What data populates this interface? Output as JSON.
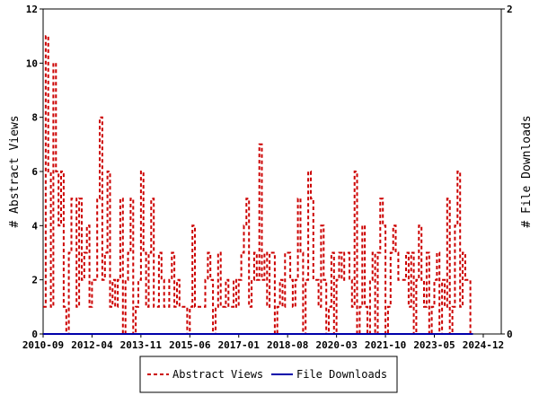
{
  "chart_data": {
    "type": "line",
    "ylabel_left": "# Abstract Views",
    "ylabel_right": "# File Downloads",
    "ylim_left": [
      0,
      12
    ],
    "ylim_right": [
      0,
      2
    ],
    "y_ticks_left": [
      0,
      2,
      4,
      6,
      8,
      10,
      12
    ],
    "y_ticks_right": [
      0,
      2
    ],
    "x_range_years": [
      2010.667,
      2025.5
    ],
    "x_ticks": [
      {
        "label": "2010-09",
        "t": 2010.667
      },
      {
        "label": "2012-04",
        "t": 2012.25
      },
      {
        "label": "2013-11",
        "t": 2013.833
      },
      {
        "label": "2015-06",
        "t": 2015.417
      },
      {
        "label": "2017-01",
        "t": 2017.0
      },
      {
        "label": "2018-08",
        "t": 2018.583
      },
      {
        "label": "2020-03",
        "t": 2020.167
      },
      {
        "label": "2021-10",
        "t": 2021.75
      },
      {
        "label": "2023-05",
        "t": 2023.333
      },
      {
        "label": "2024-12",
        "t": 2024.917
      }
    ],
    "grid": false,
    "legend_position": "bottom",
    "series": [
      {
        "name": "Abstract Views",
        "axis": "left",
        "color": "#cc0000",
        "dash": true,
        "x_start": "2010-09",
        "step": "month",
        "values": [
          1,
          11,
          6,
          1,
          10,
          6,
          4,
          6,
          1,
          0,
          3,
          5,
          5,
          1,
          5,
          2,
          3,
          4,
          1,
          2,
          2,
          5,
          8,
          2,
          3,
          6,
          1,
          2,
          1,
          2,
          5,
          0,
          2,
          3,
          5,
          0,
          1,
          2,
          6,
          3,
          1,
          3,
          5,
          1,
          1,
          3,
          2,
          1,
          1,
          2,
          3,
          1,
          2,
          1,
          1,
          1,
          0,
          1,
          4,
          1,
          1,
          1,
          1,
          2,
          3,
          2,
          0,
          1,
          3,
          1,
          1,
          2,
          1,
          1,
          2,
          1,
          2,
          3,
          4,
          5,
          1,
          2,
          3,
          2,
          7,
          2,
          3,
          1,
          3,
          3,
          0,
          1,
          2,
          1,
          3,
          3,
          2,
          1,
          2,
          5,
          3,
          0,
          2,
          6,
          5,
          2,
          2,
          1,
          4,
          2,
          0,
          1,
          3,
          0,
          2,
          3,
          2,
          3,
          3,
          2,
          1,
          6,
          0,
          1,
          4,
          1,
          0,
          2,
          3,
          0,
          3,
          5,
          4,
          0,
          1,
          3,
          4,
          3,
          2,
          2,
          2,
          3,
          1,
          3,
          0,
          2,
          4,
          2,
          1,
          3,
          0,
          1,
          2,
          3,
          0,
          2,
          1,
          5,
          0,
          1,
          4,
          6,
          1,
          3,
          2,
          2,
          0
        ],
        "visible_x_labels": []
      },
      {
        "name": "File Downloads",
        "axis": "right",
        "color": "#0000aa",
        "dash": false,
        "x_start": "2010-09",
        "step": "month",
        "values": [
          0,
          0,
          0,
          0,
          0,
          0,
          0,
          0,
          0,
          0,
          0,
          0,
          0,
          0,
          0,
          0,
          0,
          0,
          0,
          0,
          0,
          0,
          0,
          0,
          0,
          0,
          0,
          0,
          0,
          0,
          0,
          0,
          0,
          0,
          0,
          0,
          0,
          0,
          0,
          0,
          0,
          0,
          0,
          0,
          0,
          0,
          0,
          0,
          0,
          0,
          0,
          0,
          0,
          0,
          0,
          0,
          0,
          0,
          0,
          0,
          0,
          0,
          0,
          0,
          0,
          0,
          0,
          0,
          0,
          0,
          0,
          0,
          0,
          0,
          0,
          0,
          0,
          0,
          0,
          0,
          0,
          0,
          0,
          0,
          0,
          0,
          0,
          0,
          0,
          0,
          0,
          0,
          0,
          0,
          0,
          0,
          0,
          0,
          0,
          0,
          0,
          0,
          0,
          0,
          0,
          0,
          0,
          0,
          0,
          0,
          0,
          0,
          0,
          0,
          0,
          0,
          0,
          0,
          0,
          0,
          0,
          0,
          0,
          0,
          0,
          0,
          0,
          0,
          0,
          0,
          0,
          0,
          0,
          0,
          0,
          0,
          0,
          0,
          0,
          0,
          0,
          0,
          0,
          0,
          0,
          0,
          0,
          0,
          0,
          0,
          0,
          0,
          0,
          0,
          0,
          0,
          0,
          0,
          0,
          0,
          0,
          0,
          0,
          0,
          0,
          0,
          0
        ]
      }
    ]
  }
}
